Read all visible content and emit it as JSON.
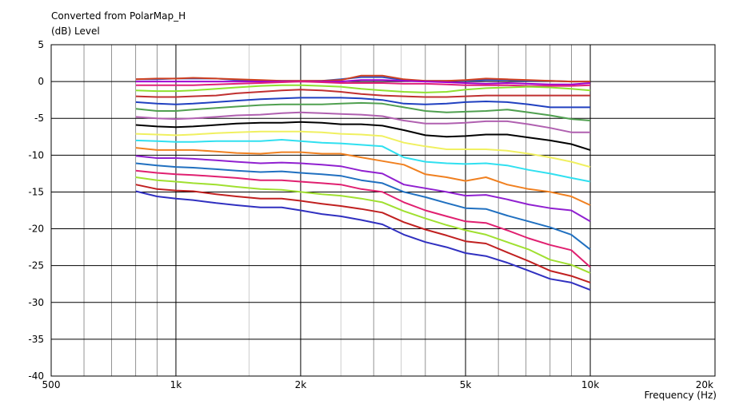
{
  "chart_data": {
    "type": "line",
    "title": "Converted from PolarMap_H",
    "ylabel": "(dB)  Level",
    "xlabel": "Frequency  (Hz)",
    "x_scale": "log",
    "xlim": [
      500,
      20000
    ],
    "ylim": [
      -40,
      5
    ],
    "y_ticks": [
      5,
      0,
      -5,
      -10,
      -15,
      -20,
      -25,
      -30,
      -35,
      -40
    ],
    "y_tick_labels": [
      "5",
      "0",
      "-5",
      "-10",
      "-15",
      "-20",
      "-25",
      "-30",
      "-35",
      "-40"
    ],
    "x_ticks": [
      500,
      1000,
      2000,
      5000,
      10000,
      20000
    ],
    "x_tick_labels": [
      "500",
      "1k",
      "2k",
      "5k",
      "10k",
      "20k"
    ],
    "grid": true,
    "x": [
      800,
      900,
      1000,
      1100,
      1250,
      1400,
      1600,
      1800,
      2000,
      2250,
      2500,
      2800,
      3150,
      3550,
      4000,
      4500,
      5000,
      5600,
      6300,
      7100,
      8000,
      9000,
      10000
    ],
    "series": [
      {
        "color": "#3050c0",
        "values": [
          0.3,
          0.3,
          0.4,
          0.4,
          0.4,
          0.2,
          0.1,
          0.1,
          0.1,
          0.1,
          0.3,
          0.6,
          0.6,
          0.2,
          0.1,
          0.1,
          0.1,
          0.2,
          0.2,
          0.1,
          0.1,
          0.0,
          0.0
        ]
      },
      {
        "color": "#d04020",
        "values": [
          0.3,
          0.4,
          0.4,
          0.5,
          0.4,
          0.3,
          0.2,
          0.1,
          0.1,
          0.1,
          0.2,
          0.8,
          0.8,
          0.3,
          0.1,
          0.1,
          0.2,
          0.4,
          0.3,
          0.2,
          0.1,
          0.0,
          0.0
        ]
      },
      {
        "color": "#a000d0",
        "values": [
          0.0,
          0.0,
          0.0,
          0.0,
          0.0,
          0.0,
          0.0,
          0.0,
          0.0,
          0.0,
          0.0,
          0.2,
          0.2,
          0.1,
          0.0,
          -0.1,
          -0.2,
          -0.3,
          -0.2,
          -0.3,
          -0.4,
          -0.4,
          -0.2
        ]
      },
      {
        "color": "#e0207a",
        "values": [
          -0.5,
          -0.5,
          -0.5,
          -0.5,
          -0.4,
          -0.3,
          -0.2,
          -0.1,
          0.0,
          -0.1,
          -0.2,
          -0.2,
          -0.2,
          -0.3,
          -0.3,
          -0.4,
          -0.5,
          -0.5,
          -0.5,
          -0.6,
          -0.6,
          -0.6,
          -0.5
        ]
      },
      {
        "color": "#90e030",
        "values": [
          -1.2,
          -1.3,
          -1.3,
          -1.2,
          -1.0,
          -0.8,
          -0.6,
          -0.5,
          -0.5,
          -0.6,
          -0.7,
          -1.0,
          -1.2,
          -1.4,
          -1.5,
          -1.4,
          -1.1,
          -0.9,
          -0.8,
          -0.7,
          -0.8,
          -1.0,
          -1.2
        ]
      },
      {
        "color": "#c03030",
        "values": [
          -2.0,
          -2.1,
          -2.1,
          -2.0,
          -1.9,
          -1.6,
          -1.4,
          -1.2,
          -1.1,
          -1.2,
          -1.4,
          -1.7,
          -1.9,
          -2.0,
          -2.1,
          -2.1,
          -2.0,
          -1.9,
          -1.9,
          -1.9,
          -1.9,
          -1.9,
          -1.9
        ]
      },
      {
        "color": "#2040c0",
        "values": [
          -2.8,
          -3.0,
          -3.1,
          -3.0,
          -2.8,
          -2.6,
          -2.4,
          -2.3,
          -2.2,
          -2.2,
          -2.2,
          -2.3,
          -2.5,
          -3.0,
          -3.1,
          -3.0,
          -2.8,
          -2.7,
          -2.8,
          -3.1,
          -3.5,
          -3.5,
          -3.5
        ]
      },
      {
        "color": "#50a050",
        "values": [
          -3.7,
          -4.0,
          -4.0,
          -3.8,
          -3.6,
          -3.4,
          -3.2,
          -3.1,
          -3.1,
          -3.1,
          -3.0,
          -2.9,
          -3.0,
          -3.5,
          -4.0,
          -4.2,
          -4.1,
          -4.0,
          -3.8,
          -4.2,
          -4.6,
          -5.1,
          -5.3
        ]
      },
      {
        "color": "#b060b0",
        "values": [
          -4.8,
          -5.0,
          -5.1,
          -5.0,
          -4.8,
          -4.6,
          -4.5,
          -4.3,
          -4.2,
          -4.3,
          -4.4,
          -4.5,
          -4.7,
          -5.3,
          -5.7,
          -5.7,
          -5.6,
          -5.4,
          -5.4,
          -5.8,
          -6.3,
          -6.9,
          -6.9
        ]
      },
      {
        "color": "#000000",
        "values": [
          -5.9,
          -6.1,
          -6.2,
          -6.1,
          -5.9,
          -5.7,
          -5.6,
          -5.6,
          -5.5,
          -5.6,
          -5.8,
          -5.8,
          -6.0,
          -6.6,
          -7.3,
          -7.5,
          -7.4,
          -7.2,
          -7.2,
          -7.6,
          -8.0,
          -8.5,
          -9.3
        ]
      },
      {
        "color": "#f0f060",
        "values": [
          -7.1,
          -7.2,
          -7.3,
          -7.2,
          -7.0,
          -6.9,
          -6.8,
          -6.8,
          -6.8,
          -6.9,
          -7.1,
          -7.2,
          -7.4,
          -8.3,
          -8.8,
          -9.2,
          -9.2,
          -9.2,
          -9.4,
          -9.8,
          -10.3,
          -10.9,
          -11.6
        ]
      },
      {
        "color": "#30e0f0",
        "values": [
          -8.0,
          -8.1,
          -8.2,
          -8.2,
          -8.1,
          -8.1,
          -8.1,
          -7.9,
          -8.1,
          -8.3,
          -8.4,
          -8.6,
          -8.8,
          -10.3,
          -10.9,
          -11.1,
          -11.2,
          -11.1,
          -11.4,
          -12.0,
          -12.5,
          -13.1,
          -13.6
        ]
      },
      {
        "color": "#f08020",
        "values": [
          -9.0,
          -9.3,
          -9.3,
          -9.3,
          -9.5,
          -9.7,
          -9.8,
          -9.6,
          -9.6,
          -9.8,
          -9.8,
          -10.3,
          -10.8,
          -11.3,
          -12.6,
          -13.0,
          -13.5,
          -13.0,
          -14.0,
          -14.6,
          -15.0,
          -15.6,
          -16.8
        ]
      },
      {
        "color": "#9020d0",
        "values": [
          -10.1,
          -10.4,
          -10.4,
          -10.5,
          -10.7,
          -10.9,
          -11.1,
          -11.0,
          -11.1,
          -11.3,
          -11.5,
          -12.1,
          -12.5,
          -14.0,
          -14.5,
          -15.0,
          -15.5,
          -15.4,
          -16.0,
          -16.7,
          -17.2,
          -17.5,
          -19.0
        ]
      },
      {
        "color": "#2070c0",
        "values": [
          -11.1,
          -11.4,
          -11.6,
          -11.7,
          -11.9,
          -12.1,
          -12.3,
          -12.2,
          -12.4,
          -12.6,
          -12.8,
          -13.4,
          -13.8,
          -15.0,
          -15.7,
          -16.5,
          -17.2,
          -17.3,
          -18.2,
          -19.0,
          -19.8,
          -20.8,
          -22.8
        ]
      },
      {
        "color": "#e02070",
        "values": [
          -12.1,
          -12.4,
          -12.6,
          -12.7,
          -12.9,
          -13.1,
          -13.4,
          -13.4,
          -13.6,
          -13.8,
          -14.0,
          -14.6,
          -15.0,
          -16.4,
          -17.5,
          -18.3,
          -19.0,
          -19.2,
          -20.2,
          -21.3,
          -22.2,
          -22.9,
          -25.2
        ]
      },
      {
        "color": "#a0e030",
        "values": [
          -13.0,
          -13.4,
          -13.6,
          -13.8,
          -14.0,
          -14.3,
          -14.6,
          -14.7,
          -15.0,
          -15.3,
          -15.5,
          -15.9,
          -16.4,
          -17.6,
          -18.6,
          -19.5,
          -20.2,
          -20.8,
          -21.8,
          -22.8,
          -24.2,
          -24.9,
          -26.0
        ]
      },
      {
        "color": "#c02020",
        "values": [
          -14.0,
          -14.6,
          -14.8,
          -14.9,
          -15.3,
          -15.6,
          -15.9,
          -15.9,
          -16.2,
          -16.6,
          -16.9,
          -17.3,
          -17.8,
          -19.1,
          -20.1,
          -20.9,
          -21.7,
          -22.0,
          -23.2,
          -24.4,
          -25.7,
          -26.4,
          -27.3
        ]
      },
      {
        "color": "#3030c0",
        "values": [
          -14.9,
          -15.6,
          -15.9,
          -16.1,
          -16.5,
          -16.8,
          -17.1,
          -17.1,
          -17.5,
          -18.0,
          -18.3,
          -18.8,
          -19.4,
          -20.8,
          -21.8,
          -22.5,
          -23.3,
          -23.7,
          -24.6,
          -25.7,
          -26.8,
          -27.3,
          -28.3
        ]
      }
    ]
  }
}
